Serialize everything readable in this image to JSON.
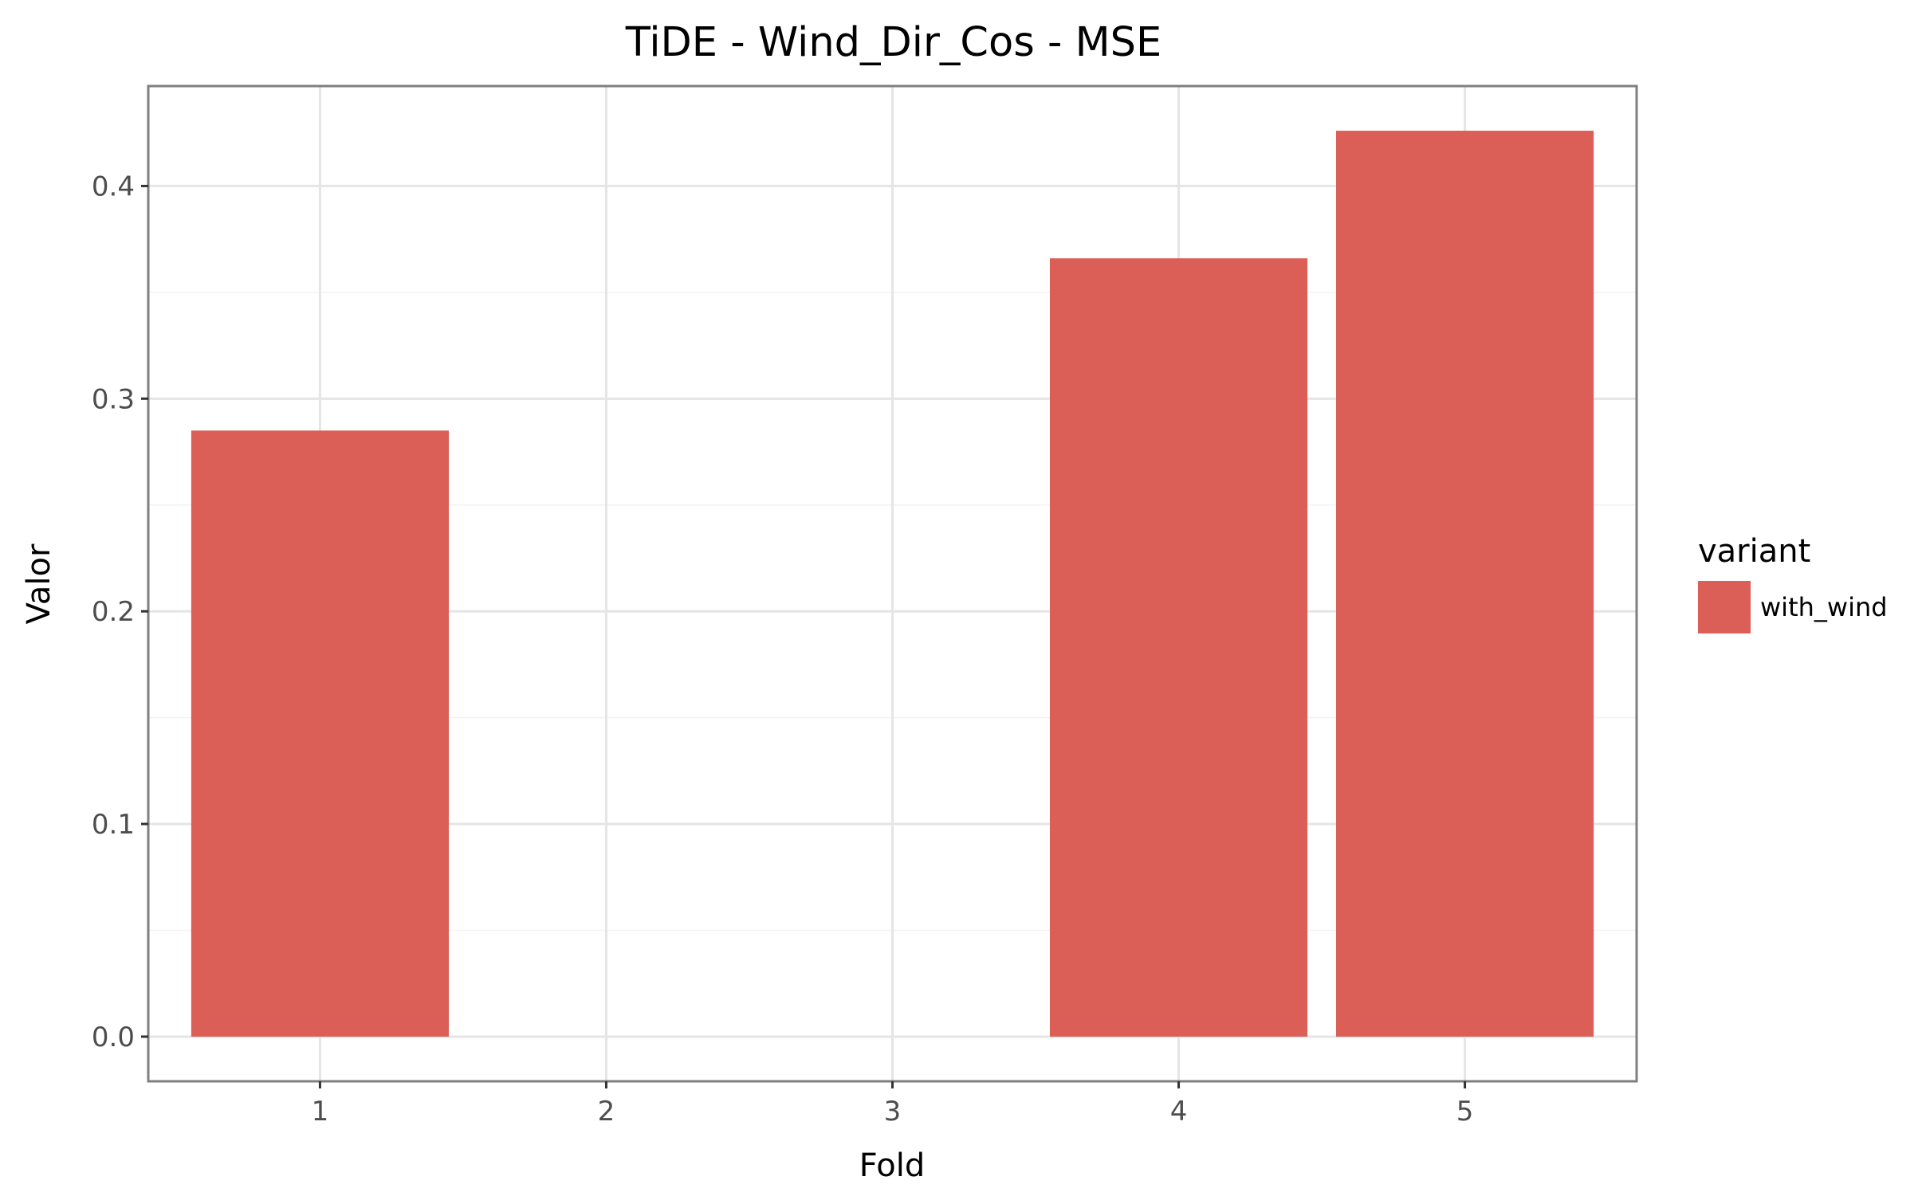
{
  "chart_data": {
    "type": "bar",
    "title": "TiDE - Wind_Dir_Cos - MSE",
    "xlabel": "Fold",
    "ylabel": "Valor",
    "categories": [
      "1",
      "2",
      "3",
      "4",
      "5"
    ],
    "series": [
      {
        "name": "with_wind",
        "color": "#dc5f57",
        "values": [
          0.285,
          null,
          null,
          0.366,
          0.426
        ]
      }
    ],
    "yticks": [
      "0.0",
      "0.1",
      "0.2",
      "0.3",
      "0.4"
    ],
    "ylim": [
      -0.021,
      0.447
    ],
    "grid": true,
    "legend": {
      "title": "variant",
      "position": "right"
    }
  }
}
